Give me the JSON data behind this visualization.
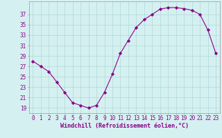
{
  "x": [
    0,
    1,
    2,
    3,
    4,
    5,
    6,
    7,
    8,
    9,
    10,
    11,
    12,
    13,
    14,
    15,
    16,
    17,
    18,
    19,
    20,
    21,
    22,
    23
  ],
  "y": [
    28,
    27,
    26,
    24,
    22,
    20,
    19.5,
    19,
    19.5,
    22,
    25.5,
    29.5,
    32,
    34.5,
    36,
    37,
    38,
    38.3,
    38.3,
    38.1,
    37.8,
    37,
    34,
    29.5
  ],
  "line_color": "#880088",
  "marker": "D",
  "marker_size": 2.2,
  "bg_color": "#d5f0f0",
  "grid_color": "#b0d8d8",
  "xlabel": "Windchill (Refroidissement éolien,°C)",
  "yticks": [
    19,
    21,
    23,
    25,
    27,
    29,
    31,
    33,
    35,
    37
  ],
  "xticks": [
    0,
    1,
    2,
    3,
    4,
    5,
    6,
    7,
    8,
    9,
    10,
    11,
    12,
    13,
    14,
    15,
    16,
    17,
    18,
    19,
    20,
    21,
    22,
    23
  ],
  "ylim": [
    18.0,
    39.5
  ],
  "xlim": [
    -0.5,
    23.5
  ],
  "tick_fontsize": 5.5,
  "label_fontsize": 6.0
}
